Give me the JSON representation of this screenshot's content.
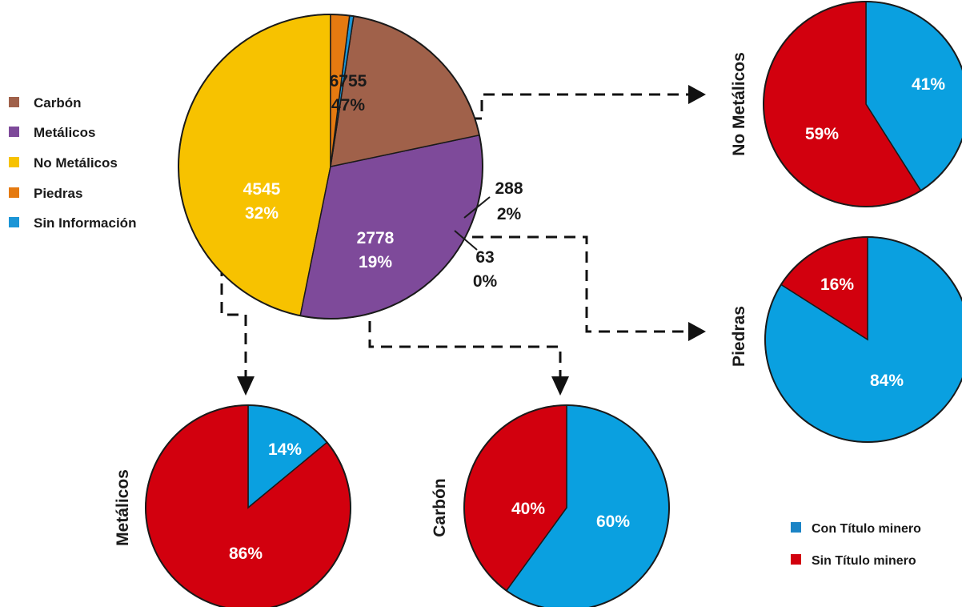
{
  "colors": {
    "carbon": "#a0614a",
    "metalicos": "#7e4a9a",
    "no_metalicos": "#f7c200",
    "piedras": "#e57a10",
    "sin_informacion": "#1b95d6",
    "con_titulo": "#0aa0e0",
    "sin_titulo": "#d2000e"
  },
  "legend_main": [
    {
      "label": "Carbón",
      "color": "#a0614a"
    },
    {
      "label": "Metálicos",
      "color": "#7e4a9a"
    },
    {
      "label": "No Metálicos",
      "color": "#f7c200"
    },
    {
      "label": "Piedras",
      "color": "#e57a10"
    },
    {
      "label": "Sin Información",
      "color": "#1b95d6"
    }
  ],
  "legend_sub": [
    {
      "label": "Con Título minero",
      "color": "#1b84c6"
    },
    {
      "label": "Sin Título minero",
      "color": "#d2000e"
    }
  ],
  "chart_data": [
    {
      "type": "pie",
      "id": "main",
      "title": "",
      "slices": [
        {
          "label": "No Metálicos",
          "value": 6755,
          "percent_label": "47%",
          "color": "#f7c200"
        },
        {
          "label": "Metálicos",
          "value": 4545,
          "percent_label": "32%",
          "color": "#7e4a9a"
        },
        {
          "label": "Carbón",
          "value": 2778,
          "percent_label": "19%",
          "color": "#a0614a"
        },
        {
          "label": "Sin Información",
          "value": 63,
          "percent_label": "0%",
          "color": "#1b95d6"
        },
        {
          "label": "Piedras",
          "value": 288,
          "percent_label": "2%",
          "color": "#e57a10"
        }
      ]
    },
    {
      "type": "pie",
      "id": "no-metalicos",
      "title": "No Metálicos",
      "slices": [
        {
          "label": "Con Título minero",
          "percent": 41,
          "percent_label": "41%",
          "color": "#0aa0e0"
        },
        {
          "label": "Sin Título minero",
          "percent": 59,
          "percent_label": "59%",
          "color": "#d2000e"
        }
      ]
    },
    {
      "type": "pie",
      "id": "piedras",
      "title": "Piedras",
      "slices": [
        {
          "label": "Con Título minero",
          "percent": 84,
          "percent_label": "84%",
          "color": "#0aa0e0"
        },
        {
          "label": "Sin Título minero",
          "percent": 16,
          "percent_label": "16%",
          "color": "#d2000e"
        }
      ]
    },
    {
      "type": "pie",
      "id": "metalicos",
      "title": "Metálicos",
      "slices": [
        {
          "label": "Con Título minero",
          "percent": 14,
          "percent_label": "14%",
          "color": "#0aa0e0"
        },
        {
          "label": "Sin Título minero",
          "percent": 86,
          "percent_label": "86%",
          "color": "#d2000e"
        }
      ]
    },
    {
      "type": "pie",
      "id": "carbon",
      "title": "Carbón",
      "slices": [
        {
          "label": "Con Título minero",
          "percent": 60,
          "percent_label": "60%",
          "color": "#0aa0e0"
        },
        {
          "label": "Sin Título minero",
          "percent": 40,
          "percent_label": "40%",
          "color": "#d2000e"
        }
      ]
    }
  ]
}
